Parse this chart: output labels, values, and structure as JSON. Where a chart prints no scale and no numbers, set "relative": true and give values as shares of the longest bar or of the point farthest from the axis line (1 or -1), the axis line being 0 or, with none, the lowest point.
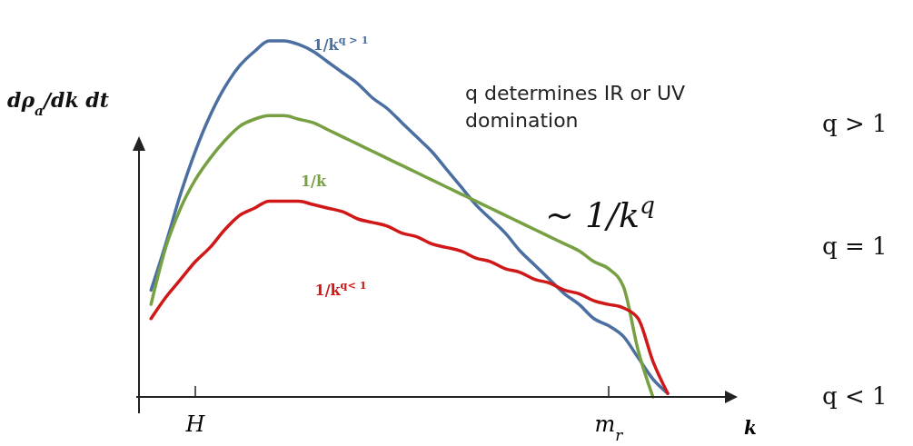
{
  "chart_data": {
    "type": "line",
    "relative": true,
    "ylabel": "dρ$_{a}$/dk dt",
    "xlabel": "k",
    "categories": [
      null,
      null,
      null,
      null,
      "H",
      null,
      null,
      null,
      null,
      null,
      null,
      null,
      null,
      null,
      null,
      null,
      null,
      null,
      null,
      null,
      null,
      null,
      null,
      null,
      null,
      null,
      null,
      null,
      null,
      null,
      null,
      null,
      "m$_{r}$",
      null,
      null,
      null,
      null,
      null,
      null,
      null,
      null
    ],
    "legend": false,
    "grid": false,
    "marker": "none",
    "line_style": "solid",
    "series": [
      {
        "name": "1/k$^{q > 1}$",
        "color": "#4a6fa0",
        "values": [
          null,
          0.3,
          0.43,
          0.57,
          0.69,
          0.79,
          0.87,
          0.93,
          0.97,
          1,
          1,
          0.99,
          0.97,
          0.94,
          0.91,
          0.88,
          0.84,
          0.81,
          0.77,
          0.73,
          0.69,
          0.64,
          0.59,
          0.54,
          0.5,
          0.46,
          0.41,
          0.37,
          0.33,
          0.29,
          0.26,
          0.22,
          0.2,
          0.17,
          0.11,
          0.05,
          0.01,
          null,
          null,
          null,
          null
        ]
      },
      {
        "name": "1/k",
        "color": "#77a043",
        "values": [
          null,
          0.26,
          0.42,
          0.53,
          0.61,
          0.67,
          0.72,
          0.76,
          0.78,
          0.79,
          0.79,
          0.78,
          0.77,
          0.75,
          0.73,
          0.71,
          0.69,
          0.67,
          0.65,
          0.63,
          0.61,
          0.59,
          0.57,
          0.55,
          0.53,
          0.51,
          0.49,
          0.47,
          0.45,
          0.43,
          0.41,
          0.38,
          0.36,
          0.31,
          0.13,
          0,
          null,
          null,
          null,
          null,
          null
        ]
      },
      {
        "name": "1/k$^{q< 1}$",
        "color": "#d01818",
        "values": [
          null,
          0.22,
          0.28,
          0.33,
          0.38,
          0.42,
          0.47,
          0.51,
          0.53,
          0.55,
          0.55,
          0.55,
          0.54,
          0.53,
          0.52,
          0.5,
          0.49,
          0.48,
          0.46,
          0.45,
          0.43,
          0.42,
          0.41,
          0.39,
          0.38,
          0.36,
          0.35,
          0.33,
          0.32,
          0.3,
          0.29,
          0.27,
          0.26,
          0.25,
          0.22,
          0.1,
          0.01,
          null,
          null,
          null,
          null
        ]
      }
    ],
    "annotations": [
      "q determines IR or UV domination",
      "~ 1/k$^{q}$",
      "q > 1",
      "q = 1",
      "q < 1"
    ]
  }
}
